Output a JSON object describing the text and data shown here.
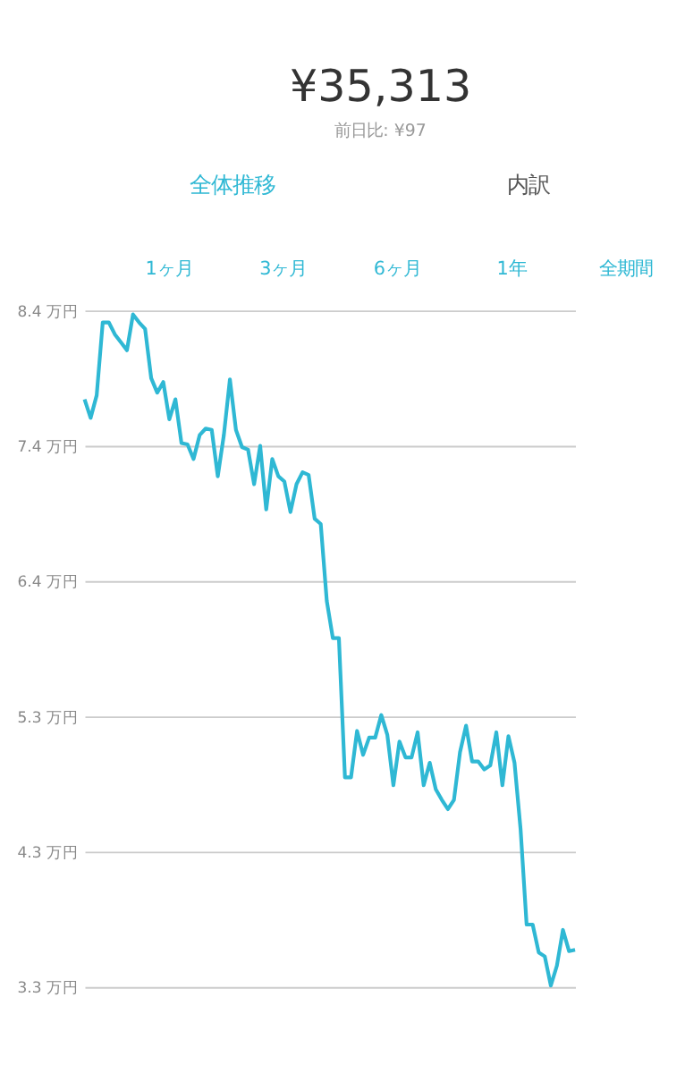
{
  "chart_data": {
    "type": "line",
    "title": "¥35,313",
    "subtitle": "前日比: ¥97",
    "annotations": [
      "全体推移",
      "内訳",
      "1ヶ月",
      "3ヶ月",
      "6ヶ月",
      "1年",
      "全期間"
    ],
    "categories": [
      null,
      null,
      null,
      null,
      null,
      null,
      null,
      null,
      null,
      null,
      null,
      null,
      null,
      null,
      null,
      null,
      null,
      null,
      null,
      null,
      null,
      null,
      null,
      null,
      null,
      null,
      null,
      null,
      null,
      null,
      null,
      null,
      null,
      null,
      null,
      null,
      null,
      null,
      null,
      null,
      null,
      null,
      null,
      null,
      null,
      null,
      null,
      null,
      null,
      null,
      null,
      null,
      null,
      null,
      null,
      null,
      null,
      null,
      null,
      null,
      null,
      null,
      null,
      null,
      null,
      null,
      null,
      null,
      null,
      null,
      null,
      null,
      null,
      null,
      null,
      null,
      null,
      null,
      null,
      null,
      null,
      null
    ],
    "series": [
      {
        "color": "#2fb8d4",
        "values": [
          7.73,
          7.59,
          7.76,
          8.31,
          8.31,
          8.22,
          8.16,
          8.1,
          8.37,
          8.31,
          8.26,
          7.89,
          7.78,
          7.86,
          7.58,
          7.73,
          7.4,
          7.39,
          7.28,
          7.46,
          7.51,
          7.5,
          7.15,
          7.46,
          7.88,
          7.5,
          7.37,
          7.35,
          7.09,
          7.38,
          6.9,
          7.28,
          7.15,
          7.11,
          6.88,
          7.09,
          7.18,
          7.16,
          6.83,
          6.79,
          6.21,
          5.93,
          5.93,
          4.88,
          4.88,
          5.23,
          5.05,
          5.18,
          5.18,
          5.35,
          5.2,
          4.82,
          5.15,
          5.03,
          5.03,
          5.22,
          4.82,
          4.99,
          4.79,
          4.71,
          4.64,
          4.71,
          5.07,
          5.27,
          5.0,
          5.0,
          4.94,
          4.97,
          5.22,
          4.82,
          5.19,
          4.99,
          4.49,
          3.77,
          3.77,
          3.56,
          3.53,
          3.31,
          3.46,
          3.73,
          3.57,
          3.58
        ]
      }
    ],
    "ylim": [
      3.3,
      8.4
    ],
    "yticks": [
      {
        "value": 3.3,
        "label": "3.3 万円"
      },
      {
        "value": 4.32,
        "label": "4.3 万円"
      },
      {
        "value": 5.34,
        "label": "5.3 万円"
      },
      {
        "value": 6.36,
        "label": "6.4 万円"
      },
      {
        "value": 7.38,
        "label": "7.4 万円"
      },
      {
        "value": 8.4,
        "label": "8.4 万円"
      }
    ],
    "grid": "y",
    "tick_labels": "y",
    "marker": "none",
    "line_style": "solid"
  }
}
